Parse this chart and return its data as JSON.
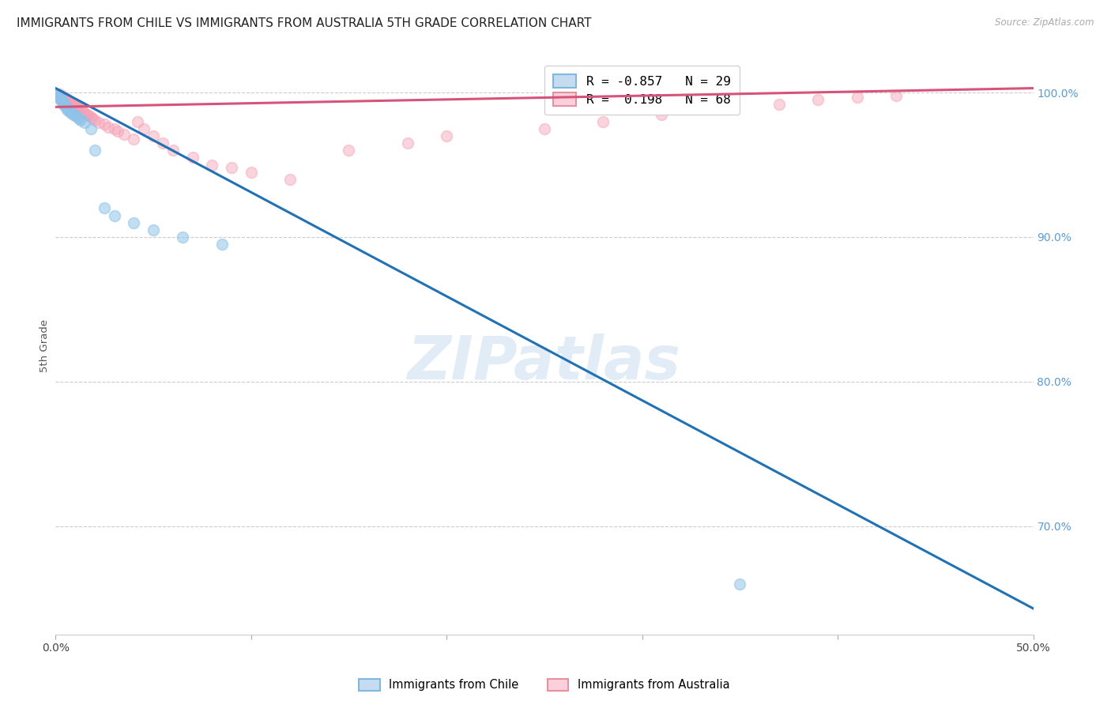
{
  "title": "IMMIGRANTS FROM CHILE VS IMMIGRANTS FROM AUSTRALIA 5TH GRADE CORRELATION CHART",
  "source": "Source: ZipAtlas.com",
  "ylabel": "5th Grade",
  "xmin": 0.0,
  "xmax": 0.5,
  "ymin": 0.625,
  "ymax": 1.025,
  "yticks": [
    1.0,
    0.9,
    0.8,
    0.7
  ],
  "ytick_labels": [
    "100.0%",
    "90.0%",
    "80.0%",
    "70.0%"
  ],
  "xticks": [
    0.0,
    0.1,
    0.2,
    0.3,
    0.4,
    0.5
  ],
  "xtick_labels_show": [
    "0.0%",
    "",
    "",
    "",
    "",
    "50.0%"
  ],
  "legend_entries": [
    {
      "label": "R = -0.857   N = 29",
      "color": "#8fc3e8"
    },
    {
      "label": "R =  0.198   N = 68",
      "color": "#f4a0b5"
    }
  ],
  "chile_color": "#8fc3e8",
  "australia_color": "#f4a0b5",
  "chile_line_color": "#2171b5",
  "australia_line_color": "#d6537a",
  "watermark": "ZIPatlas",
  "background_color": "#ffffff",
  "grid_color": "#cccccc",
  "right_axis_color": "#5b9bd5",
  "chile_line_x": [
    0.0,
    0.5
  ],
  "chile_line_y": [
    1.003,
    0.643
  ],
  "aus_line_x": [
    0.0,
    0.5
  ],
  "aus_line_y": [
    0.99,
    1.003
  ],
  "chile_points_x": [
    0.001,
    0.001,
    0.002,
    0.002,
    0.003,
    0.003,
    0.004,
    0.004,
    0.005,
    0.005,
    0.006,
    0.006,
    0.007,
    0.008,
    0.009,
    0.01,
    0.011,
    0.012,
    0.013,
    0.015,
    0.018,
    0.02,
    0.025,
    0.03,
    0.04,
    0.05,
    0.065,
    0.085,
    0.35
  ],
  "chile_points_y": [
    0.999,
    0.998,
    0.997,
    0.996,
    0.995,
    0.994,
    0.993,
    0.992,
    0.991,
    0.99,
    0.989,
    0.988,
    0.987,
    0.986,
    0.985,
    0.984,
    0.983,
    0.982,
    0.981,
    0.979,
    0.975,
    0.96,
    0.92,
    0.915,
    0.91,
    0.905,
    0.9,
    0.895,
    0.66
  ],
  "aus_points_x": [
    0.001,
    0.001,
    0.001,
    0.002,
    0.002,
    0.002,
    0.002,
    0.003,
    0.003,
    0.003,
    0.003,
    0.004,
    0.004,
    0.004,
    0.005,
    0.005,
    0.005,
    0.006,
    0.006,
    0.006,
    0.007,
    0.007,
    0.007,
    0.008,
    0.008,
    0.009,
    0.009,
    0.01,
    0.01,
    0.011,
    0.011,
    0.012,
    0.013,
    0.014,
    0.015,
    0.016,
    0.017,
    0.018,
    0.019,
    0.02,
    0.022,
    0.025,
    0.027,
    0.03,
    0.032,
    0.035,
    0.04,
    0.042,
    0.045,
    0.05,
    0.055,
    0.06,
    0.07,
    0.08,
    0.09,
    0.1,
    0.12,
    0.15,
    0.18,
    0.2,
    0.25,
    0.28,
    0.31,
    0.34,
    0.37,
    0.39,
    0.41,
    0.43
  ],
  "aus_points_y": [
    0.999,
    0.998,
    0.997,
    0.999,
    0.998,
    0.997,
    0.996,
    0.998,
    0.997,
    0.996,
    0.995,
    0.997,
    0.996,
    0.995,
    0.996,
    0.995,
    0.994,
    0.995,
    0.994,
    0.993,
    0.994,
    0.993,
    0.992,
    0.993,
    0.992,
    0.992,
    0.991,
    0.991,
    0.99,
    0.99,
    0.989,
    0.989,
    0.988,
    0.987,
    0.986,
    0.985,
    0.984,
    0.983,
    0.982,
    0.981,
    0.979,
    0.978,
    0.976,
    0.975,
    0.973,
    0.971,
    0.968,
    0.98,
    0.975,
    0.97,
    0.965,
    0.96,
    0.955,
    0.95,
    0.948,
    0.945,
    0.94,
    0.96,
    0.965,
    0.97,
    0.975,
    0.98,
    0.985,
    0.99,
    0.992,
    0.995,
    0.997,
    0.998
  ]
}
